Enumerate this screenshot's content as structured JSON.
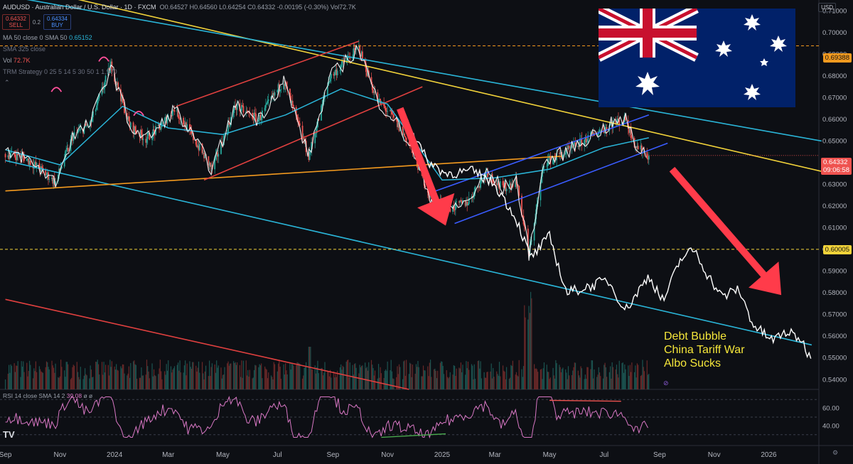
{
  "header": {
    "symbol": "AUDUSD · Australian Dollar / U.S. Dollar · 1D · FXCM",
    "ohlc": "O0.64527 H0.64560 L0.64254 C0.64332 -0.00195 (-0.30%)",
    "vol_header": "Vol72.7K",
    "sell_price": "0.64332",
    "sell_label": "SELL",
    "spread": "0.2",
    "buy_price": "0.64334",
    "buy_label": "BUY",
    "ma_legend": "MA 50 close 0 SMA 50",
    "ma_value": "0.65152",
    "sma325_legend": "SMA 325 close",
    "vol_legend": "Vol",
    "vol_value": "72.7K",
    "trm_legend": "TRM Strategy 0 25 5 14 5 30 50 1 1.970",
    "currency": "USD"
  },
  "price_tags": {
    "level_top": "0.69388",
    "current": "0.64332",
    "countdown": "09:06:58",
    "level_mid": "0.60005"
  },
  "annotation": {
    "lines": [
      "Debt Bubble",
      "China Tariff War",
      "Albo Sucks"
    ]
  },
  "rsi": {
    "legend": "RSI 14 close SMA 14 2",
    "value": "39.08",
    "ticks": [
      "60.00",
      "40.00"
    ]
  },
  "icons": {
    "flag": "australian-flag-icon",
    "arrows": "red-arrow-icon"
  },
  "colors": {
    "background": "#0d0f14",
    "up": "#26a69a",
    "down": "#ef5350",
    "projection": "#ffffff",
    "sma50": "#2ab5d8",
    "trend_yellow": "#f2d33a",
    "trend_orange": "#f39a1f",
    "channel_red": "#e0403f",
    "channel_blue": "#3a5cff",
    "rsi": "#d978c5",
    "flag_blue": "#012169"
  },
  "chart_data": {
    "type": "line",
    "title": "AUDUSD · Australian Dollar / U.S. Dollar · 1D · FXCM",
    "xlabel": "",
    "ylabel": "",
    "x_ticks": [
      "Sep",
      "Nov",
      "2024",
      "Mar",
      "May",
      "Jul",
      "Sep",
      "Nov",
      "2025",
      "Mar",
      "May",
      "Jul",
      "Sep",
      "Nov",
      "2026"
    ],
    "y_ticks": [
      0.71,
      0.7,
      0.69,
      0.68,
      0.67,
      0.66,
      0.65,
      0.64,
      0.63,
      0.62,
      0.61,
      0.6,
      0.59,
      0.58,
      0.57,
      0.56,
      0.55,
      0.54
    ],
    "ylim": [
      0.5355,
      0.715
    ],
    "series": [
      {
        "name": "AUDUSD",
        "kind": "close",
        "points": [
          [
            "2023-09-01",
            0.644
          ],
          [
            "2023-09-20",
            0.643
          ],
          [
            "2023-10-10",
            0.637
          ],
          [
            "2023-10-27",
            0.631
          ],
          [
            "2023-11-15",
            0.652
          ],
          [
            "2023-12-05",
            0.658
          ],
          [
            "2023-12-28",
            0.685
          ],
          [
            "2024-01-18",
            0.657
          ],
          [
            "2024-02-05",
            0.651
          ],
          [
            "2024-02-20",
            0.656
          ],
          [
            "2024-03-08",
            0.665
          ],
          [
            "2024-03-28",
            0.652
          ],
          [
            "2024-04-19",
            0.637
          ],
          [
            "2024-05-15",
            0.666
          ],
          [
            "2024-06-10",
            0.66
          ],
          [
            "2024-07-08",
            0.678
          ],
          [
            "2024-08-05",
            0.643
          ],
          [
            "2024-08-28",
            0.679
          ],
          [
            "2024-09-30",
            0.693
          ],
          [
            "2024-10-20",
            0.669
          ],
          [
            "2024-11-05",
            0.662
          ],
          [
            "2024-11-25",
            0.649
          ],
          [
            "2024-12-20",
            0.623
          ],
          [
            "2025-01-10",
            0.619
          ],
          [
            "2025-01-30",
            0.622
          ],
          [
            "2025-02-20",
            0.636
          ],
          [
            "2025-03-10",
            0.628
          ],
          [
            "2025-03-25",
            0.632
          ],
          [
            "2025-04-08",
            0.598
          ],
          [
            "2025-04-25",
            0.64
          ],
          [
            "2025-05-20",
            0.645
          ],
          [
            "2025-06-15",
            0.652
          ],
          [
            "2025-07-10",
            0.658
          ],
          [
            "2025-07-25",
            0.66
          ],
          [
            "2025-08-05",
            0.648
          ],
          [
            "2025-08-20",
            0.643
          ]
        ]
      },
      {
        "name": "Projection",
        "kind": "projection",
        "points": [
          [
            "2024-11-20",
            0.662
          ],
          [
            "2024-12-15",
            0.641
          ],
          [
            "2025-01-05",
            0.635
          ],
          [
            "2025-02-05",
            0.636
          ],
          [
            "2025-03-01",
            0.63
          ],
          [
            "2025-03-25",
            0.614
          ],
          [
            "2025-04-10",
            0.596
          ],
          [
            "2025-05-01",
            0.606
          ],
          [
            "2025-05-20",
            0.58
          ],
          [
            "2025-06-15",
            0.583
          ],
          [
            "2025-07-05",
            0.586
          ],
          [
            "2025-07-25",
            0.572
          ],
          [
            "2025-08-20",
            0.588
          ],
          [
            "2025-09-05",
            0.576
          ],
          [
            "2025-09-25",
            0.596
          ],
          [
            "2025-10-10",
            0.6
          ],
          [
            "2025-10-25",
            0.588
          ],
          [
            "2025-11-10",
            0.578
          ],
          [
            "2025-11-28",
            0.582
          ],
          [
            "2025-12-15",
            0.565
          ],
          [
            "2026-01-05",
            0.558
          ],
          [
            "2026-01-20",
            0.562
          ],
          [
            "2026-02-05",
            0.559
          ],
          [
            "2026-02-18",
            0.549
          ]
        ]
      },
      {
        "name": "SMA 50",
        "kind": "sma",
        "points": [
          [
            "2023-09-01",
            0.646
          ],
          [
            "2023-11-01",
            0.639
          ],
          [
            "2024-01-10",
            0.666
          ],
          [
            "2024-03-01",
            0.656
          ],
          [
            "2024-05-01",
            0.653
          ],
          [
            "2024-07-10",
            0.662
          ],
          [
            "2024-09-10",
            0.674
          ],
          [
            "2024-11-01",
            0.667
          ],
          [
            "2025-01-01",
            0.632
          ],
          [
            "2025-03-01",
            0.633
          ],
          [
            "2025-05-01",
            0.637
          ],
          [
            "2025-07-01",
            0.647
          ],
          [
            "2025-08-20",
            0.6515
          ]
        ]
      }
    ],
    "levels": [
      {
        "name": "Resistance",
        "y": 0.69388,
        "style": "dashed",
        "color": "#f39a1f"
      },
      {
        "name": "Support",
        "y": 0.60005,
        "style": "dashed",
        "color": "#f2d33a"
      }
    ],
    "trendlines": [
      {
        "name": "yellow-downtrend",
        "from": [
          "2023-09-01",
          0.723
        ],
        "to": [
          "2026-03-01",
          0.636
        ],
        "color": "#f2d33a"
      },
      {
        "name": "cyan-downtrend",
        "from": [
          "2023-09-01",
          0.717
        ],
        "to": [
          "2026-03-01",
          0.65
        ],
        "color": "#2ab5d8"
      },
      {
        "name": "cyan-lower",
        "from": [
          "2023-09-01",
          0.641
        ],
        "to": [
          "2026-02-18",
          0.556
        ],
        "color": "#2ab5d8"
      },
      {
        "name": "orange-support",
        "from": [
          "2023-09-01",
          0.627
        ],
        "to": [
          "2025-05-15",
          0.643
        ],
        "color": "#f39a1f"
      },
      {
        "name": "red-long-downtrend",
        "from": [
          "2023-09-01",
          0.577
        ],
        "to": [
          "2024-11-25",
          0.5355
        ],
        "color": "#e0403f"
      },
      {
        "name": "red-channel-upper",
        "from": [
          "2024-03-10",
          0.666
        ],
        "to": [
          "2024-09-30",
          0.696
        ],
        "color": "#e0403f"
      },
      {
        "name": "red-channel-lower",
        "from": [
          "2024-04-10",
          0.632
        ],
        "to": [
          "2024-12-10",
          0.675
        ],
        "color": "#e0403f"
      },
      {
        "name": "blue-channel-upper",
        "from": [
          "2024-12-25",
          0.627
        ],
        "to": [
          "2025-08-20",
          0.662
        ],
        "color": "#3a5cff"
      },
      {
        "name": "blue-channel-lower",
        "from": [
          "2025-01-15",
          0.612
        ],
        "to": [
          "2025-09-10",
          0.649
        ],
        "color": "#3a5cff"
      }
    ],
    "arrows": [
      {
        "from": [
          "2024-11-15",
          0.665
        ],
        "to": [
          "2025-01-05",
          0.611
        ]
      },
      {
        "from": [
          "2025-09-15",
          0.637
        ],
        "to": [
          "2026-01-15",
          0.579
        ]
      }
    ],
    "volume": {
      "label": "Vol",
      "last": "72.7K"
    },
    "rsi": {
      "name": "RSI 14",
      "last": 39.08,
      "levels": [
        70,
        50,
        30
      ]
    },
    "grid": false,
    "legend": "top-left"
  }
}
